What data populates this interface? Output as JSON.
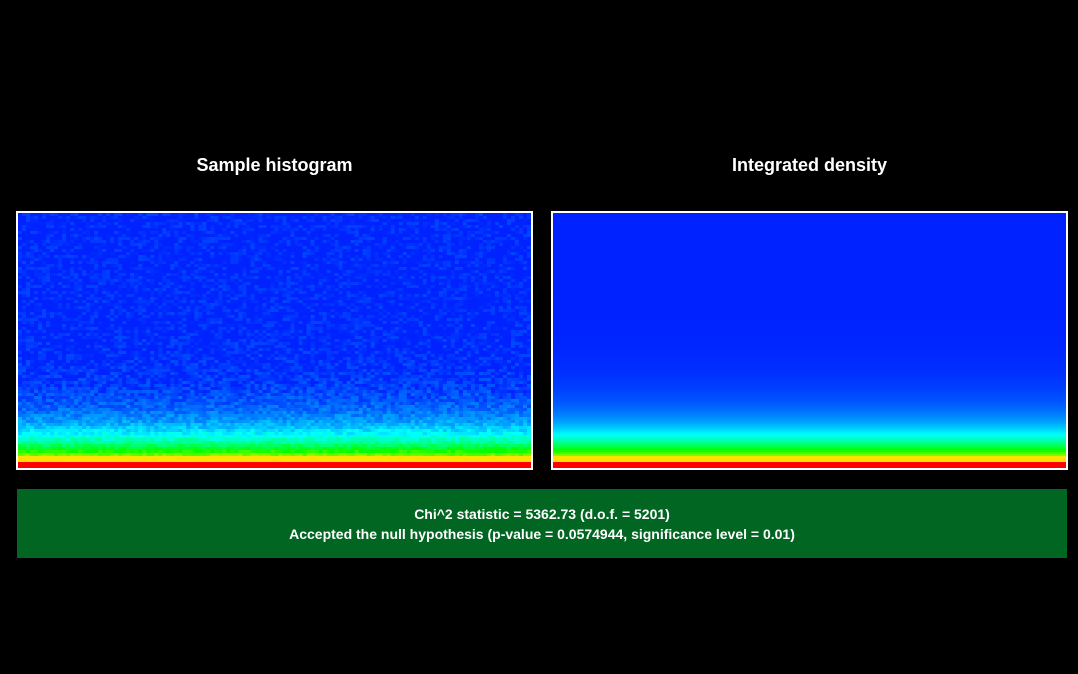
{
  "chart_data": [
    {
      "type": "heatmap",
      "title": "Sample histogram",
      "colormap": [
        "#0022ff",
        "#00ffff",
        "#00ff00",
        "#ffff00",
        "#ff0000"
      ],
      "noisy": true
    },
    {
      "type": "heatmap",
      "title": "Integrated density",
      "colormap": [
        "#0022ff",
        "#00ffff",
        "#00ff00",
        "#ffff00",
        "#ff0000"
      ],
      "noisy": false
    }
  ],
  "result": {
    "line1": "Chi^2 statistic = 5362.73 (d.o.f. = 5201)",
    "line2": "Accepted the null hypothesis (p-value = 0.0574944, significance level = 0.01)",
    "background_color": "#006621"
  }
}
